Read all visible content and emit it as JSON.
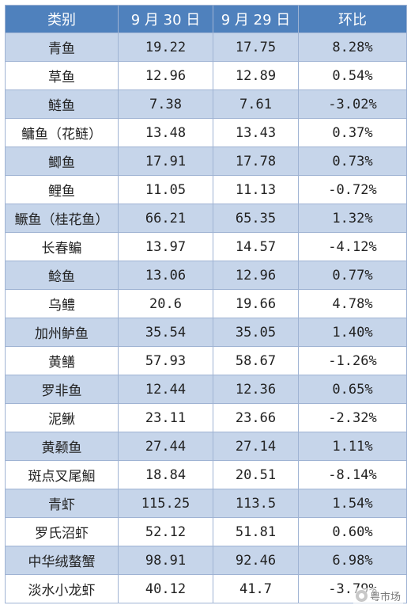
{
  "table": {
    "headers": [
      "类别",
      "9 月 30 日",
      "9 月 29 日",
      "环比"
    ],
    "rows": [
      [
        "青鱼",
        "19.22",
        "17.75",
        "8.28%"
      ],
      [
        "草鱼",
        "12.96",
        "12.89",
        "0.54%"
      ],
      [
        "鲢鱼",
        "7.38",
        "7.61",
        "-3.02%"
      ],
      [
        "鳙鱼（花鲢）",
        "13.48",
        "13.43",
        "0.37%"
      ],
      [
        "鲫鱼",
        "17.91",
        "17.78",
        "0.73%"
      ],
      [
        "鲤鱼",
        "11.05",
        "11.13",
        "-0.72%"
      ],
      [
        "鳜鱼（桂花鱼）",
        "66.21",
        "65.35",
        "1.32%"
      ],
      [
        "长春鳊",
        "13.97",
        "14.57",
        "-4.12%"
      ],
      [
        "鲶鱼",
        "13.06",
        "12.96",
        "0.77%"
      ],
      [
        "乌鳢",
        "20.6",
        "19.66",
        "4.78%"
      ],
      [
        "加州鲈鱼",
        "35.54",
        "35.05",
        "1.40%"
      ],
      [
        "黄鳝",
        "57.93",
        "58.67",
        "-1.26%"
      ],
      [
        "罗非鱼",
        "12.44",
        "12.36",
        "0.65%"
      ],
      [
        "泥鳅",
        "23.11",
        "23.66",
        "-2.32%"
      ],
      [
        "黄颡鱼",
        "27.44",
        "27.14",
        "1.11%"
      ],
      [
        "斑点叉尾鮰",
        "18.84",
        "20.51",
        "-8.14%"
      ],
      [
        "青虾",
        "115.25",
        "113.5",
        "1.54%"
      ],
      [
        "罗氏沼虾",
        "52.12",
        "51.81",
        "0.60%"
      ],
      [
        "中华绒螯蟹",
        "98.91",
        "92.46",
        "6.98%"
      ],
      [
        "淡水小龙虾",
        "40.12",
        "41.7",
        "-3.79%"
      ]
    ]
  },
  "watermark": {
    "text": "粤市场",
    "icon": "wechat-icon"
  }
}
